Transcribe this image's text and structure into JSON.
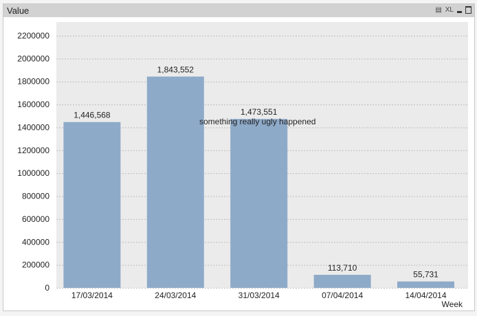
{
  "window": {
    "title": "Value",
    "xl_label": "XL"
  },
  "chart_data": {
    "type": "bar",
    "title": "Value",
    "xlabel": "Week",
    "ylabel": "",
    "categories": [
      "17/03/2014",
      "24/03/2014",
      "31/03/2014",
      "07/04/2014",
      "14/04/2014"
    ],
    "values": [
      1446568,
      1843552,
      1473551,
      113710,
      55731
    ],
    "value_labels": [
      "1,446,568",
      "1,843,552",
      "1,473,551",
      "113,710",
      "55,731"
    ],
    "annotations": [
      {
        "category": "31/03/2014",
        "text": "something really ugly happened"
      }
    ],
    "ylim": [
      0,
      2200000
    ],
    "yticks": [
      0,
      200000,
      400000,
      600000,
      800000,
      1000000,
      1200000,
      1400000,
      1600000,
      1800000,
      2000000,
      2200000
    ],
    "grid": true,
    "bar_color": "#8eaac9",
    "plot_bg": "#ebebeb"
  }
}
